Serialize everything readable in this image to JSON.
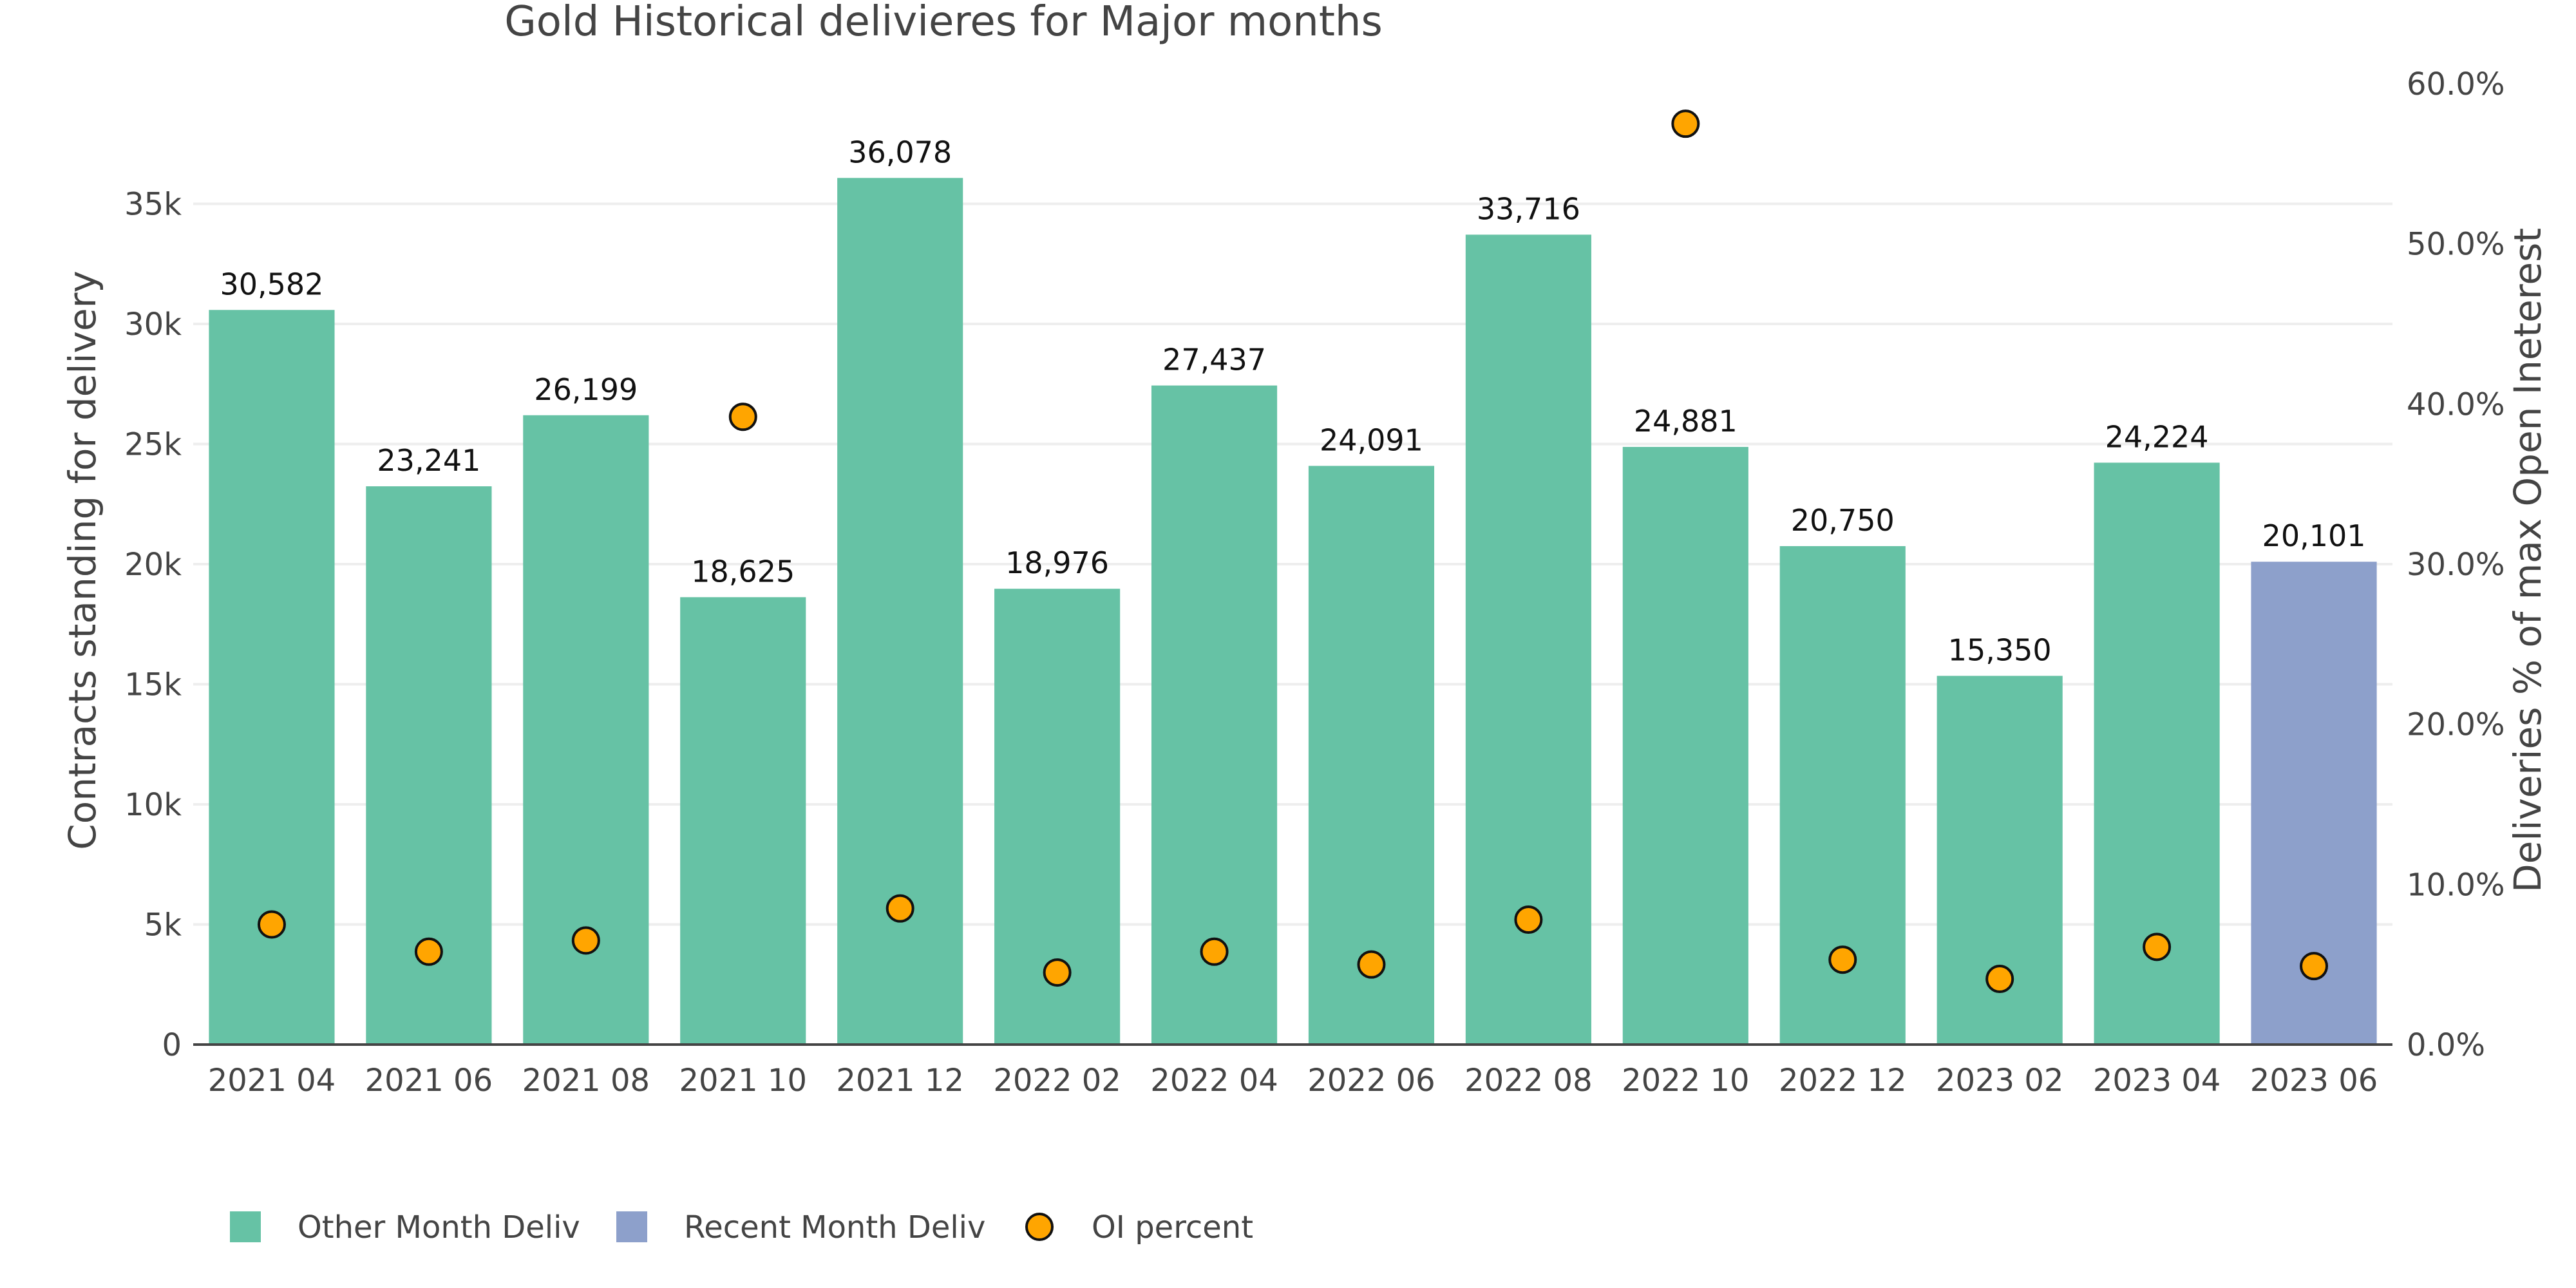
{
  "chart_data": {
    "type": "bar",
    "title": "Gold Historical delivieres for Major months",
    "ylabel": "Contracts standing for delivery",
    "y2label": "Deliveries % of max Open Ineterest",
    "categories": [
      "2021 04",
      "2021 06",
      "2021 08",
      "2021 10",
      "2021 12",
      "2022 02",
      "2022 04",
      "2022 06",
      "2022 08",
      "2022 10",
      "2022 12",
      "2023 02",
      "2023 04",
      "2023 06"
    ],
    "series": [
      {
        "name": "Other Month Deliv",
        "kind": "bar",
        "color": "#66c2a5",
        "values": [
          30582,
          23241,
          26199,
          18625,
          36078,
          18976,
          27437,
          24091,
          33716,
          24881,
          20750,
          15350,
          24224,
          null
        ]
      },
      {
        "name": "Recent Month Deliv",
        "kind": "bar",
        "color": "#8da0cb",
        "values": [
          null,
          null,
          null,
          null,
          null,
          null,
          null,
          null,
          null,
          null,
          null,
          null,
          null,
          20101
        ]
      },
      {
        "name": "OI percent",
        "kind": "scatter",
        "axis": "y2",
        "color": "#ffa500",
        "values": [
          7.5,
          5.8,
          6.5,
          39.2,
          8.5,
          4.5,
          5.8,
          5.0,
          7.8,
          57.5,
          5.3,
          4.1,
          6.1,
          4.9
        ]
      }
    ],
    "data_labels": [
      "30,582",
      "23,241",
      "26,199",
      "18,625",
      "36,078",
      "18,976",
      "27,437",
      "24,091",
      "33,716",
      "24,881",
      "20,750",
      "15,350",
      "24,224",
      "20,101"
    ],
    "ylim": [
      0,
      40000
    ],
    "y_ticks": [
      0,
      5000,
      10000,
      15000,
      20000,
      25000,
      30000,
      35000
    ],
    "y_tick_labels": [
      "0",
      "5k",
      "10k",
      "15k",
      "20k",
      "25k",
      "30k",
      "35k"
    ],
    "y2lim": [
      0,
      60
    ],
    "y2_ticks": [
      0,
      10,
      20,
      30,
      40,
      50,
      60
    ],
    "y2_tick_labels": [
      "0.0%",
      "10.0%",
      "20.0%",
      "30.0%",
      "40.0%",
      "50.0%",
      "60.0%"
    ],
    "grid": true,
    "legend": "bottom-left"
  }
}
